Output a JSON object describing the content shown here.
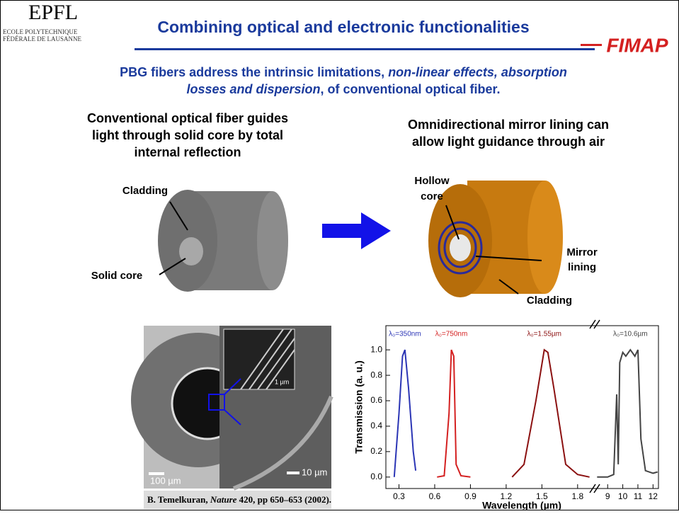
{
  "header": {
    "logo_left": "EPFL",
    "logo_line1": "ECOLE POLYTECHNIQUE",
    "logo_line2": "FÉDÉRALE DE LAUSANNE",
    "title": "Combining optical and electronic functionalities",
    "logo_right": "FIMAP"
  },
  "subtitle": {
    "line1_a": "PBG fibers address the intrinsic limitations, ",
    "line1_b": "non-linear effects, absorption",
    "line2_a": "losses and dispersion",
    "line2_b": ", of conventional optical fiber."
  },
  "left_panel": {
    "caption": [
      "Conventional optical fiber guides",
      "light through solid core by total",
      "internal reflection"
    ],
    "label_cladding": "Cladding",
    "label_core": "Solid core"
  },
  "right_panel": {
    "caption": [
      "Omnidirectional mirror lining can",
      "allow light guidance through air"
    ],
    "label_hollow": [
      "Hollow",
      "core"
    ],
    "label_mirror": [
      "Mirror",
      "lining"
    ],
    "label_cladding": "Cladding"
  },
  "micrograph": {
    "scale_100": "100 µm",
    "scale_10": "10 µm",
    "scale_1": "1 µm"
  },
  "citation": {
    "author": "B. Temelkuran, ",
    "journal": "Nature",
    "rest": " 420, pp 650–653 (2002)."
  },
  "chart_data": {
    "type": "line",
    "y_label": "Transmission (a. u.)",
    "x_label": "Wavelength (µm)",
    "ylim": [
      -0.09,
      1.19
    ],
    "yticks": [
      {
        "value": 0,
        "label": "0.0"
      },
      0.2,
      0.4,
      0.6,
      0.8,
      {
        "value": 1,
        "label": "1.0"
      }
    ],
    "segments": [
      {
        "xlim": [
          0.19,
          1.92
        ],
        "xticks": [
          0.3,
          0.6,
          0.9,
          1.2,
          1.5,
          1.8
        ]
      },
      {
        "xlim": [
          8.24,
          12.36
        ],
        "xticks": [
          9,
          10,
          11,
          12
        ]
      }
    ],
    "series": [
      {
        "name": "λ₀=350nm",
        "color": "#2b35b5",
        "segment": 0,
        "x": [
          0.26,
          0.3,
          0.33,
          0.35,
          0.38,
          0.42,
          0.44
        ],
        "values": [
          0,
          0.5,
          0.95,
          1.0,
          0.7,
          0.2,
          0.05
        ]
      },
      {
        "name": "λ₀=750nm",
        "color": "#d42020",
        "segment": 0,
        "x": [
          0.62,
          0.68,
          0.72,
          0.74,
          0.76,
          0.78,
          0.82,
          0.9
        ],
        "values": [
          0,
          0.01,
          0.5,
          1.0,
          0.95,
          0.1,
          0.01,
          0
        ]
      },
      {
        "name": "λ₀=1.55µm",
        "color": "#8b1010",
        "segment": 0,
        "x": [
          1.25,
          1.35,
          1.45,
          1.52,
          1.55,
          1.6,
          1.7,
          1.8,
          1.9
        ],
        "values": [
          0,
          0.1,
          0.6,
          1.0,
          0.98,
          0.7,
          0.1,
          0.02,
          0
        ]
      },
      {
        "name": "λ₀=10.6µm",
        "color": "#444444",
        "segment": 1,
        "x": [
          8.3,
          9,
          9.4,
          9.6,
          9.7,
          9.8,
          10,
          10.2,
          10.5,
          10.8,
          11,
          11.2,
          11.5,
          12,
          12.3
        ],
        "values": [
          0,
          0,
          0.02,
          0.65,
          0.1,
          0.9,
          0.98,
          0.95,
          1.0,
          0.95,
          1.0,
          0.3,
          0.05,
          0.03,
          0.04
        ]
      }
    ]
  }
}
